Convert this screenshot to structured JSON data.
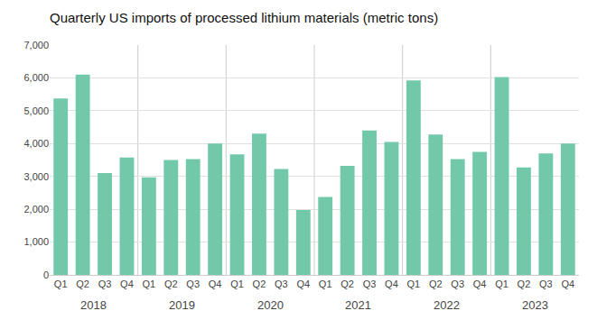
{
  "chart_data": {
    "type": "bar",
    "title": "Quarterly US imports of processed lithium materials (metric tons)",
    "categories": [
      "Q1",
      "Q2",
      "Q3",
      "Q4",
      "Q1",
      "Q2",
      "Q3",
      "Q4",
      "Q1",
      "Q2",
      "Q3",
      "Q4",
      "Q1",
      "Q2",
      "Q3",
      "Q4",
      "Q1",
      "Q2",
      "Q3",
      "Q4",
      "Q1",
      "Q2",
      "Q3",
      "Q4"
    ],
    "groups": [
      "2018",
      "2019",
      "2020",
      "2021",
      "2022",
      "2023"
    ],
    "values": [
      5375,
      6100,
      3100,
      3575,
      2975,
      3500,
      3525,
      4000,
      3675,
      4300,
      3225,
      1975,
      2375,
      3325,
      4400,
      4050,
      5925,
      4275,
      3525,
      3750,
      6025,
      3275,
      3700,
      4000
    ],
    "color": "#72c9aa",
    "ylim": [
      0,
      7000
    ],
    "yticks": [
      0,
      {
        "value": 1000,
        "label": "1,000"
      },
      {
        "value": 2000,
        "label": "2,000"
      },
      {
        "value": 3000,
        "label": "3,000"
      },
      {
        "value": 4000,
        "label": "4,000"
      },
      {
        "value": 5000,
        "label": "5,000"
      },
      {
        "value": 6000,
        "label": "6,000"
      },
      {
        "value": 7000,
        "label": "7,000"
      }
    ],
    "grid": true
  }
}
